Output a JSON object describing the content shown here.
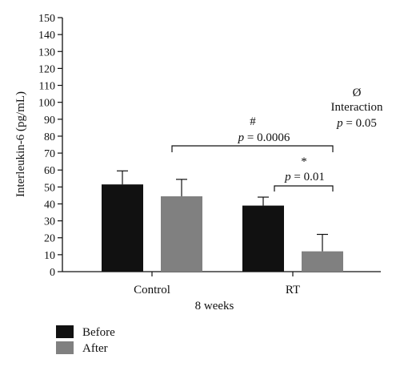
{
  "chart_data": {
    "type": "bar",
    "categories": [
      "Control",
      "RT"
    ],
    "series": [
      {
        "name": "Before",
        "values": [
          51.5,
          39
        ],
        "errors": [
          8,
          5
        ],
        "color": "#111111"
      },
      {
        "name": "After",
        "values": [
          44.5,
          12
        ],
        "errors": [
          10,
          10
        ],
        "color": "#808080"
      }
    ],
    "ylabel": "Interleukin-6 (pg/mL)",
    "xlabel": "8 weeks",
    "ylim": [
      0,
      150
    ],
    "yticks": [
      0,
      10,
      20,
      30,
      40,
      50,
      60,
      70,
      80,
      90,
      100,
      110,
      120,
      130,
      140,
      150
    ],
    "grid": false,
    "legend": "bottom-left",
    "annotations": {
      "group_symbol": "#",
      "group_p_label": "p",
      "group_p_value": " = 0.0006",
      "rt_symbol": "*",
      "rt_p_label": "p",
      "rt_p_value": " = 0.01",
      "interaction_symbol": "Ø",
      "interaction_label": "Interaction",
      "interaction_p_label": "p",
      "interaction_p_value": " = 0.05"
    }
  }
}
